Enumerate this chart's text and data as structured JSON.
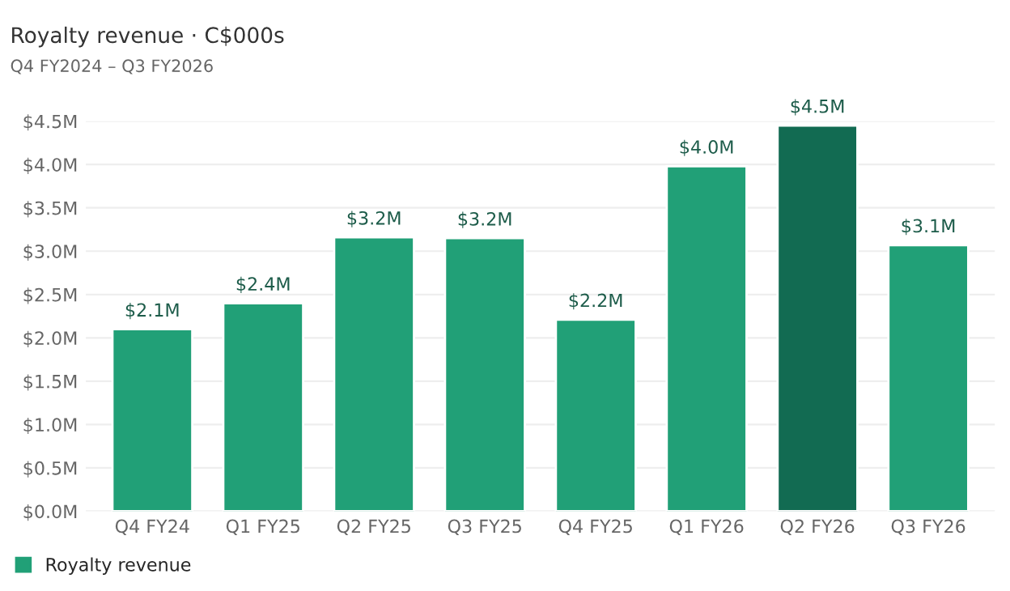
{
  "chart_data": {
    "type": "bar",
    "title": "Royalty revenue · C$000s",
    "subtitle": "Q4 FY2024 – Q3 FY2026",
    "categories": [
      "Q4 FY24",
      "Q1 FY25",
      "Q2 FY25",
      "Q3 FY25",
      "Q4 FY25",
      "Q1 FY26",
      "Q2 FY26",
      "Q3 FY26"
    ],
    "series": [
      {
        "name": "Royalty revenue",
        "color": "#21a077",
        "colors": [
          "#21a077",
          "#21a077",
          "#21a077",
          "#21a077",
          "#21a077",
          "#21a077",
          "#126b52",
          "#21a077"
        ],
        "values": [
          2.1,
          2.4,
          3.16,
          3.15,
          2.21,
          3.98,
          4.45,
          3.07
        ],
        "value_labels": [
          "$2.1M",
          "$2.4M",
          "$3.2M",
          "$3.2M",
          "$2.2M",
          "$4.0M",
          "$4.5M",
          "$3.1M"
        ]
      }
    ],
    "ylim": [
      0,
      4.5
    ],
    "yticks": [
      {
        "value": 0,
        "label": "$0.0M"
      },
      {
        "value": 0.5,
        "label": "$0.5M"
      },
      {
        "value": 1,
        "label": "$1.0M"
      },
      {
        "value": 1.5,
        "label": "$1.5M"
      },
      {
        "value": 2,
        "label": "$2.0M"
      },
      {
        "value": 2.5,
        "label": "$2.5M"
      },
      {
        "value": 3,
        "label": "$3.0M"
      },
      {
        "value": 3.5,
        "label": "$3.5M"
      },
      {
        "value": 4,
        "label": "$4.0M"
      },
      {
        "value": 4.5,
        "label": "$4.5M"
      }
    ],
    "grid": "y",
    "legend": "bottom left"
  }
}
